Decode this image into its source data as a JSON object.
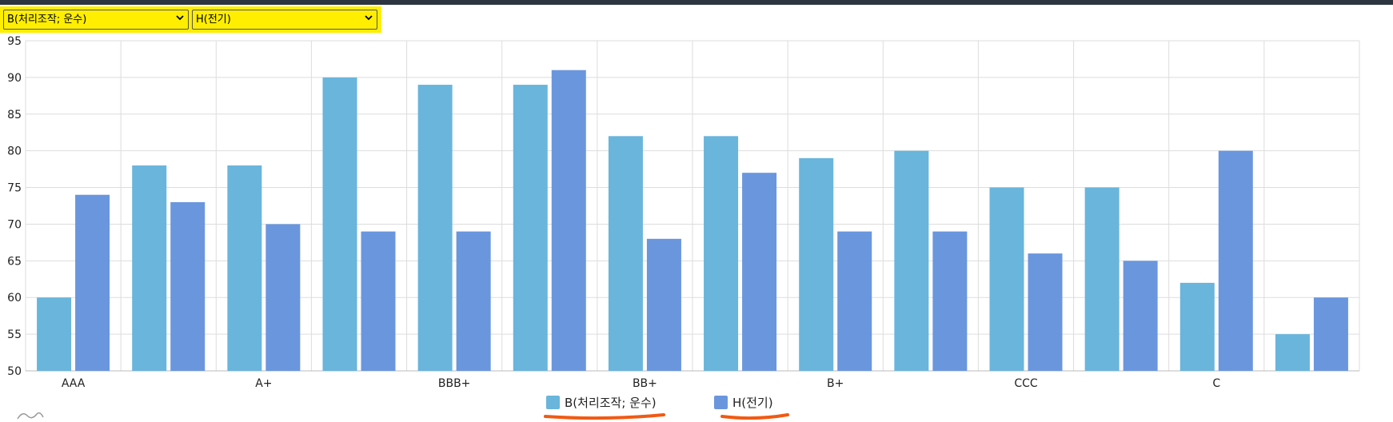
{
  "selectors": {
    "first": {
      "selected": "B(처리조작; 운수)",
      "options": [
        "B(처리조작; 운수)"
      ]
    },
    "second": {
      "selected": "H(전기)",
      "options": [
        "H(전기)"
      ]
    }
  },
  "colors": {
    "highlight": "#ffee00",
    "underline": "#f05a14",
    "series_1": "#69b5dc",
    "series_2": "#6a96de",
    "grid": "#dddddd",
    "top_bar": "#2d3640"
  },
  "chart_data": {
    "type": "bar",
    "categories": [
      "AAA",
      "",
      "A+",
      "",
      "BBB+",
      "",
      "BB+",
      "",
      "B+",
      "",
      "CCC",
      "",
      "C",
      ""
    ],
    "series": [
      {
        "name": "B(처리조작; 운수)",
        "values": [
          60,
          78,
          78,
          90,
          89,
          89,
          82,
          82,
          79,
          80,
          75,
          75,
          62,
          55
        ]
      },
      {
        "name": "H(전기)",
        "values": [
          74,
          73,
          70,
          69,
          69,
          91,
          68,
          77,
          69,
          69,
          66,
          65,
          80,
          60
        ]
      }
    ],
    "yticks": [
      50,
      55,
      60,
      65,
      70,
      75,
      80,
      85,
      90,
      95
    ],
    "ylim": [
      50,
      95
    ],
    "grid": true,
    "legend": "bottom-center"
  }
}
